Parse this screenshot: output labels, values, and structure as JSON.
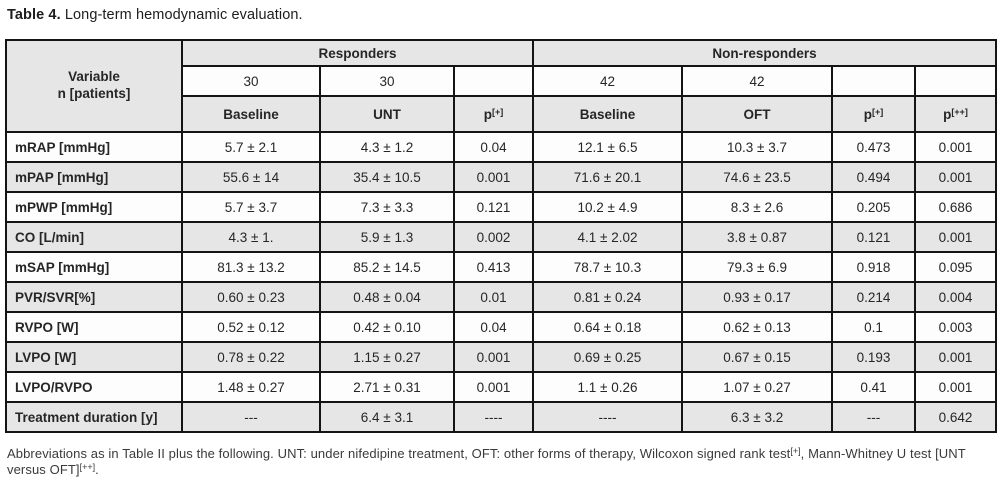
{
  "title": {
    "label": "Table 4.",
    "text": " Long-term hemodynamic evaluation."
  },
  "table": {
    "corner_header_line1": "Variable",
    "corner_header_line2": "n [patients]",
    "groups": [
      {
        "label": "Responders"
      },
      {
        "label": "Non-responders"
      }
    ],
    "n_row": [
      "30",
      "30",
      "",
      "42",
      "42",
      "",
      ""
    ],
    "col_headers": [
      {
        "base": "Baseline",
        "sup": ""
      },
      {
        "base": "UNT",
        "sup": ""
      },
      {
        "base": "p",
        "sup": "[+]"
      },
      {
        "base": "Baseline",
        "sup": ""
      },
      {
        "base": "OFT",
        "sup": ""
      },
      {
        "base": "p",
        "sup": "[+]"
      },
      {
        "base": "p",
        "sup": "[++]"
      }
    ],
    "rows": [
      {
        "label": "mRAP [mmHg]",
        "cells": [
          "5.7 ± 2.1",
          "4.3 ± 1.2",
          "0.04",
          "12.1 ± 6.5",
          "10.3 ± 3.7",
          "0.473",
          "0.001"
        ]
      },
      {
        "label": "mPAP [mmHg]",
        "cells": [
          "55.6 ± 14",
          "35.4 ± 10.5",
          "0.001",
          "71.6 ± 20.1",
          "74.6 ± 23.5",
          "0.494",
          "0.001"
        ]
      },
      {
        "label": "mPWP [mmHg]",
        "cells": [
          "5.7 ± 3.7",
          "7.3 ± 3.3",
          "0.121",
          "10.2 ± 4.9",
          "8.3 ± 2.6",
          "0.205",
          "0.686"
        ]
      },
      {
        "label": "CO [L/min]",
        "cells": [
          "4.3 ± 1.",
          "5.9 ± 1.3",
          "0.002",
          "4.1 ± 2.02",
          "3.8 ± 0.87",
          "0.121",
          "0.001"
        ]
      },
      {
        "label": "mSAP [mmHg]",
        "cells": [
          "81.3 ± 13.2",
          "85.2 ± 14.5",
          "0.413",
          "78.7 ± 10.3",
          "79.3 ± 6.9",
          "0.918",
          "0.095"
        ]
      },
      {
        "label": "PVR/SVR[%]",
        "cells": [
          "0.60 ± 0.23",
          "0.48 ± 0.04",
          "0.01",
          "0.81 ± 0.24",
          "0.93 ± 0.17",
          "0.214",
          "0.004"
        ]
      },
      {
        "label": "RVPO [W]",
        "cells": [
          "0.52 ± 0.12",
          "0.42 ± 0.10",
          "0.04",
          "0.64 ± 0.18",
          "0.62 ± 0.13",
          "0.1",
          "0.003"
        ]
      },
      {
        "label": "LVPO [W]",
        "cells": [
          "0.78 ± 0.22",
          "1.15 ± 0.27",
          "0.001",
          "0.69 ± 0.25",
          "0.67 ± 0.15",
          "0.193",
          "0.001"
        ]
      },
      {
        "label": "LVPO/RVPO",
        "cells": [
          "1.48 ± 0.27",
          "2.71 ± 0.31",
          "0.001",
          "1.1 ± 0.26",
          "1.07 ± 0.27",
          "0.41",
          "0.001"
        ]
      },
      {
        "label": "Treatment duration [y]",
        "cells": [
          "---",
          "6.4 ± 3.1",
          "----",
          "----",
          "6.3 ± 3.2",
          "---",
          "0.642"
        ]
      }
    ]
  },
  "footnote": {
    "segments": [
      {
        "text": "Abbreviations as in Table II plus the following. UNT: under nifedipine treatment, OFT: other forms of therapy, Wilcoxon signed rank test"
      },
      {
        "sup": "[+]"
      },
      {
        "text": ", Mann-Whitney U test [UNT versus OFT]"
      },
      {
        "sup": "[++]"
      },
      {
        "text": "."
      }
    ]
  },
  "colors": {
    "header_bg": "#e6e6e6",
    "alt_row_bg": "#e6e6e6",
    "border": "#141414",
    "text": "#262626"
  }
}
